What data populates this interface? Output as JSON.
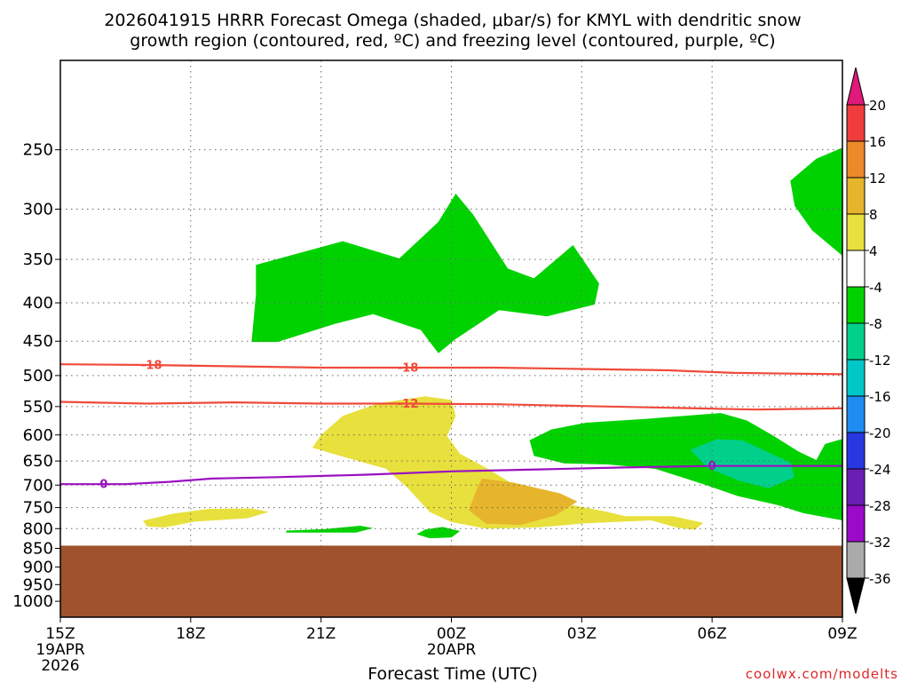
{
  "chart_data": {
    "type": "heatmap",
    "title_line1": "2026041915 HRRR Forecast Omega (shaded, μbar/s) for KMYL with dendritic snow",
    "title_line2": "growth region (contoured, red, ºC) and freezing level (contoured, purple, ºC)",
    "xlabel": "Forecast Time (UTC)",
    "ylabel": "",
    "credit": "coolwx.com/modelts",
    "x_range_hours": [
      0,
      18
    ],
    "x_ticks": [
      {
        "h": 0,
        "label": "15Z",
        "sub1": "19APR",
        "sub2": "2026"
      },
      {
        "h": 3,
        "label": "18Z",
        "sub1": "",
        "sub2": ""
      },
      {
        "h": 6,
        "label": "21Z",
        "sub1": "",
        "sub2": ""
      },
      {
        "h": 9,
        "label": "00Z",
        "sub1": "20APR",
        "sub2": ""
      },
      {
        "h": 12,
        "label": "03Z",
        "sub1": "",
        "sub2": ""
      },
      {
        "h": 15,
        "label": "06Z",
        "sub1": "",
        "sub2": ""
      },
      {
        "h": 18,
        "label": "09Z",
        "sub1": "",
        "sub2": ""
      }
    ],
    "y_range_hPa": [
      1050,
      190
    ],
    "y_ticks": [
      250,
      300,
      350,
      400,
      450,
      500,
      550,
      600,
      650,
      700,
      750,
      800,
      850,
      900,
      950,
      1000
    ],
    "ground_pressure_hPa": 843,
    "colorbar": {
      "bins": [
        {
          "label": "20",
          "color": "#e0197a"
        },
        {
          "label": "16",
          "color": "#f03c3c"
        },
        {
          "label": "12",
          "color": "#ec8a2a"
        },
        {
          "label": "8",
          "color": "#e6b52c"
        },
        {
          "label": "4",
          "color": "#e8e03c"
        },
        {
          "label": "-4",
          "color": "#ffffff"
        },
        {
          "label": "-8",
          "color": "#00d200"
        },
        {
          "label": "-12",
          "color": "#00d08a"
        },
        {
          "label": "-16",
          "color": "#00c8c8"
        },
        {
          "label": "-20",
          "color": "#1e8cf0"
        },
        {
          "label": "-24",
          "color": "#2838e0"
        },
        {
          "label": "-28",
          "color": "#6a1eb4"
        },
        {
          "label": "-32",
          "color": "#9a0ac8"
        },
        {
          "label": "-36",
          "color": "#aaaaaa"
        }
      ],
      "top_arrow_color": "#e0197a",
      "bottom_arrow_color": "#000000"
    },
    "shaded_regions": [
      {
        "value_bin": "-4 to -8",
        "color": "#00d200",
        "points": [
          [
            4.4,
            451
          ],
          [
            4.5,
            390
          ],
          [
            4.5,
            356
          ],
          [
            6.5,
            331
          ],
          [
            7.8,
            349
          ],
          [
            8.7,
            312
          ],
          [
            9.1,
            286
          ],
          [
            9.5,
            305
          ],
          [
            10.3,
            360
          ],
          [
            10.9,
            371
          ],
          [
            11.8,
            335
          ],
          [
            12.4,
            377
          ],
          [
            12.3,
            402
          ],
          [
            11.2,
            417
          ],
          [
            10.1,
            409
          ],
          [
            9.1,
            447
          ],
          [
            8.7,
            467
          ],
          [
            8.3,
            435
          ],
          [
            7.2,
            414
          ],
          [
            6.3,
            427
          ],
          [
            5.0,
            451
          ]
        ]
      },
      {
        "value_bin": "-4 to -8",
        "color": "#00d200",
        "points": [
          [
            16.8,
            275
          ],
          [
            17.4,
            257
          ],
          [
            18.1,
            247
          ],
          [
            18.1,
            350
          ],
          [
            17.3,
            320
          ],
          [
            16.9,
            297
          ]
        ]
      },
      {
        "value_bin": "-4 to -8",
        "color": "#00d200",
        "points": [
          [
            10.8,
            610
          ],
          [
            11.3,
            590
          ],
          [
            12.1,
            578
          ],
          [
            13.5,
            571
          ],
          [
            14.5,
            565
          ],
          [
            15.2,
            561
          ],
          [
            15.8,
            574
          ],
          [
            16.4,
            601
          ],
          [
            17.0,
            632
          ],
          [
            17.4,
            648
          ],
          [
            17.6,
            617
          ],
          [
            18.1,
            605
          ],
          [
            18.1,
            782
          ],
          [
            17.1,
            763
          ],
          [
            16.5,
            744
          ],
          [
            15.6,
            724
          ],
          [
            14.8,
            698
          ],
          [
            13.7,
            666
          ],
          [
            12.6,
            657
          ],
          [
            11.6,
            655
          ],
          [
            10.9,
            640
          ]
        ]
      },
      {
        "value_bin": "-8 to -12",
        "color": "#00d08a",
        "points": [
          [
            14.5,
            628
          ],
          [
            15.1,
            608
          ],
          [
            15.7,
            610
          ],
          [
            16.3,
            633
          ],
          [
            16.8,
            653
          ],
          [
            16.9,
            683
          ],
          [
            16.3,
            707
          ],
          [
            15.6,
            690
          ],
          [
            14.9,
            664
          ]
        ]
      },
      {
        "value_bin": "4 to 8",
        "color": "#e8e03c",
        "points": [
          [
            5.8,
            624
          ],
          [
            6.0,
            600
          ],
          [
            6.5,
            566
          ],
          [
            7.3,
            545
          ],
          [
            8.4,
            533
          ],
          [
            9.0,
            539
          ],
          [
            9.1,
            566
          ],
          [
            8.9,
            602
          ],
          [
            9.2,
            636
          ],
          [
            9.8,
            664
          ],
          [
            10.6,
            708
          ],
          [
            11.3,
            735
          ],
          [
            12.5,
            758
          ],
          [
            13.0,
            770
          ],
          [
            14.1,
            770
          ],
          [
            14.8,
            786
          ],
          [
            14.6,
            803
          ],
          [
            14.2,
            798
          ],
          [
            13.6,
            780
          ],
          [
            12.1,
            787
          ],
          [
            11.0,
            797
          ],
          [
            9.8,
            800
          ],
          [
            9.0,
            784
          ],
          [
            8.5,
            760
          ],
          [
            8.0,
            707
          ],
          [
            7.5,
            666
          ],
          [
            6.2,
            634
          ]
        ]
      },
      {
        "value_bin": "8 to 12",
        "color": "#e6b52c",
        "points": [
          [
            9.6,
            705
          ],
          [
            9.7,
            686
          ],
          [
            10.4,
            694
          ],
          [
            11.5,
            718
          ],
          [
            11.9,
            736
          ],
          [
            11.4,
            768
          ],
          [
            10.6,
            791
          ],
          [
            9.8,
            788
          ],
          [
            9.4,
            756
          ]
        ]
      },
      {
        "value_bin": "4 to 8",
        "color": "#e8e03c",
        "points": [
          [
            1.9,
            781
          ],
          [
            2.6,
            764
          ],
          [
            3.4,
            753
          ],
          [
            4.4,
            752
          ],
          [
            4.8,
            760
          ],
          [
            4.3,
            775
          ],
          [
            3.1,
            783
          ],
          [
            2.4,
            797
          ],
          [
            2.0,
            795
          ]
        ]
      },
      {
        "value_bin": "-4 to -8",
        "color": "#00d200",
        "points": [
          [
            5.2,
            805
          ],
          [
            6.1,
            801
          ],
          [
            6.9,
            793
          ],
          [
            7.2,
            799
          ],
          [
            6.8,
            810
          ],
          [
            5.2,
            810
          ]
        ]
      },
      {
        "value_bin": "-4 to -8",
        "color": "#00d200",
        "points": [
          [
            8.2,
            814
          ],
          [
            8.4,
            802
          ],
          [
            8.8,
            796
          ],
          [
            9.2,
            806
          ],
          [
            9.0,
            822
          ],
          [
            8.5,
            824
          ]
        ]
      }
    ],
    "contours": [
      {
        "name": "-18C isotherm",
        "color": "#f04a3a",
        "label": "-18",
        "points": [
          [
            0,
            483
          ],
          [
            2,
            484
          ],
          [
            4,
            486
          ],
          [
            6,
            488
          ],
          [
            8,
            488
          ],
          [
            10,
            488
          ],
          [
            12,
            490
          ],
          [
            14,
            492
          ],
          [
            15.5,
            496
          ],
          [
            18,
            498
          ]
        ],
        "label_positions": [
          2.1,
          8.0
        ]
      },
      {
        "name": "-12C isotherm",
        "color": "#f04a3a",
        "label": "-12",
        "points": [
          [
            0,
            542
          ],
          [
            2,
            545
          ],
          [
            4,
            543
          ],
          [
            6,
            545
          ],
          [
            8,
            545
          ],
          [
            10,
            546
          ],
          [
            12,
            549
          ],
          [
            14,
            552
          ],
          [
            16,
            555
          ],
          [
            18,
            553
          ]
        ],
        "label_positions": [
          8.0
        ]
      },
      {
        "name": "0C freezing level",
        "color": "#9a10c0",
        "label": "0",
        "points": [
          [
            0,
            698
          ],
          [
            1.5,
            698
          ],
          [
            2.5,
            693
          ],
          [
            3.5,
            686
          ],
          [
            5,
            683
          ],
          [
            7,
            678
          ],
          [
            9,
            671
          ],
          [
            11,
            667
          ],
          [
            13,
            663
          ],
          [
            15,
            660
          ],
          [
            18,
            660
          ]
        ],
        "label_positions": [
          1.0,
          15.0
        ]
      }
    ]
  }
}
